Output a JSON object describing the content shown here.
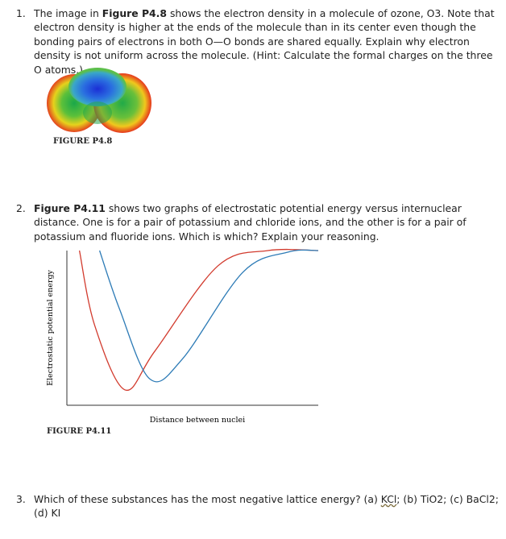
{
  "questions": [
    {
      "number": "1.",
      "text_1": "The image in ",
      "bold": "Figure P4.8",
      "text_2": " shows the electron density in a molecule of ozone, O3. Note that electron density is higher at the ends of the molecule than in its center even though the bonding pairs of electrons in both O—O bonds are shared equally. Explain why electron density is not uniform across the molecule. (Hint: Calculate the formal charges on the three O atoms.)",
      "figure_caption": "FIGURE P4.8"
    },
    {
      "number": "2.",
      "bold": "Figure P4.11",
      "text_2": " shows two graphs of electrostatic potential energy versus internuclear distance. One is for a pair of potassium and chloride ions, and the other is for a pair of potassium and fluoride ions. Which is which? Explain your reasoning.",
      "figure_caption": "FIGURE P4.11"
    },
    {
      "number": "3.",
      "text_1": "Which of these substances has the most negative lattice energy? (a) ",
      "kcl": "KCl",
      "text_2": "; (b) TiO2; (c) BaCl2; (d) KI"
    }
  ],
  "chart_data": {
    "type": "line",
    "xlabel": "Distance between nuclei",
    "ylabel": "Electrostatic potential energy",
    "series": [
      {
        "color": "#d23b2e",
        "x": [
          0.05,
          0.11,
          0.23,
          0.35,
          0.6,
          0.8,
          1.0
        ],
        "y": [
          1.0,
          0.52,
          0.1,
          0.35,
          0.9,
          1.0,
          1.0
        ]
      },
      {
        "color": "#2d7bb6",
        "x": [
          0.13,
          0.21,
          0.33,
          0.46,
          0.7,
          0.88,
          1.0
        ],
        "y": [
          1.0,
          0.62,
          0.17,
          0.3,
          0.86,
          0.99,
          1.0
        ]
      }
    ]
  },
  "colors": {
    "red_curve": "#d23b2e",
    "blue_curve": "#2d7bb6"
  }
}
